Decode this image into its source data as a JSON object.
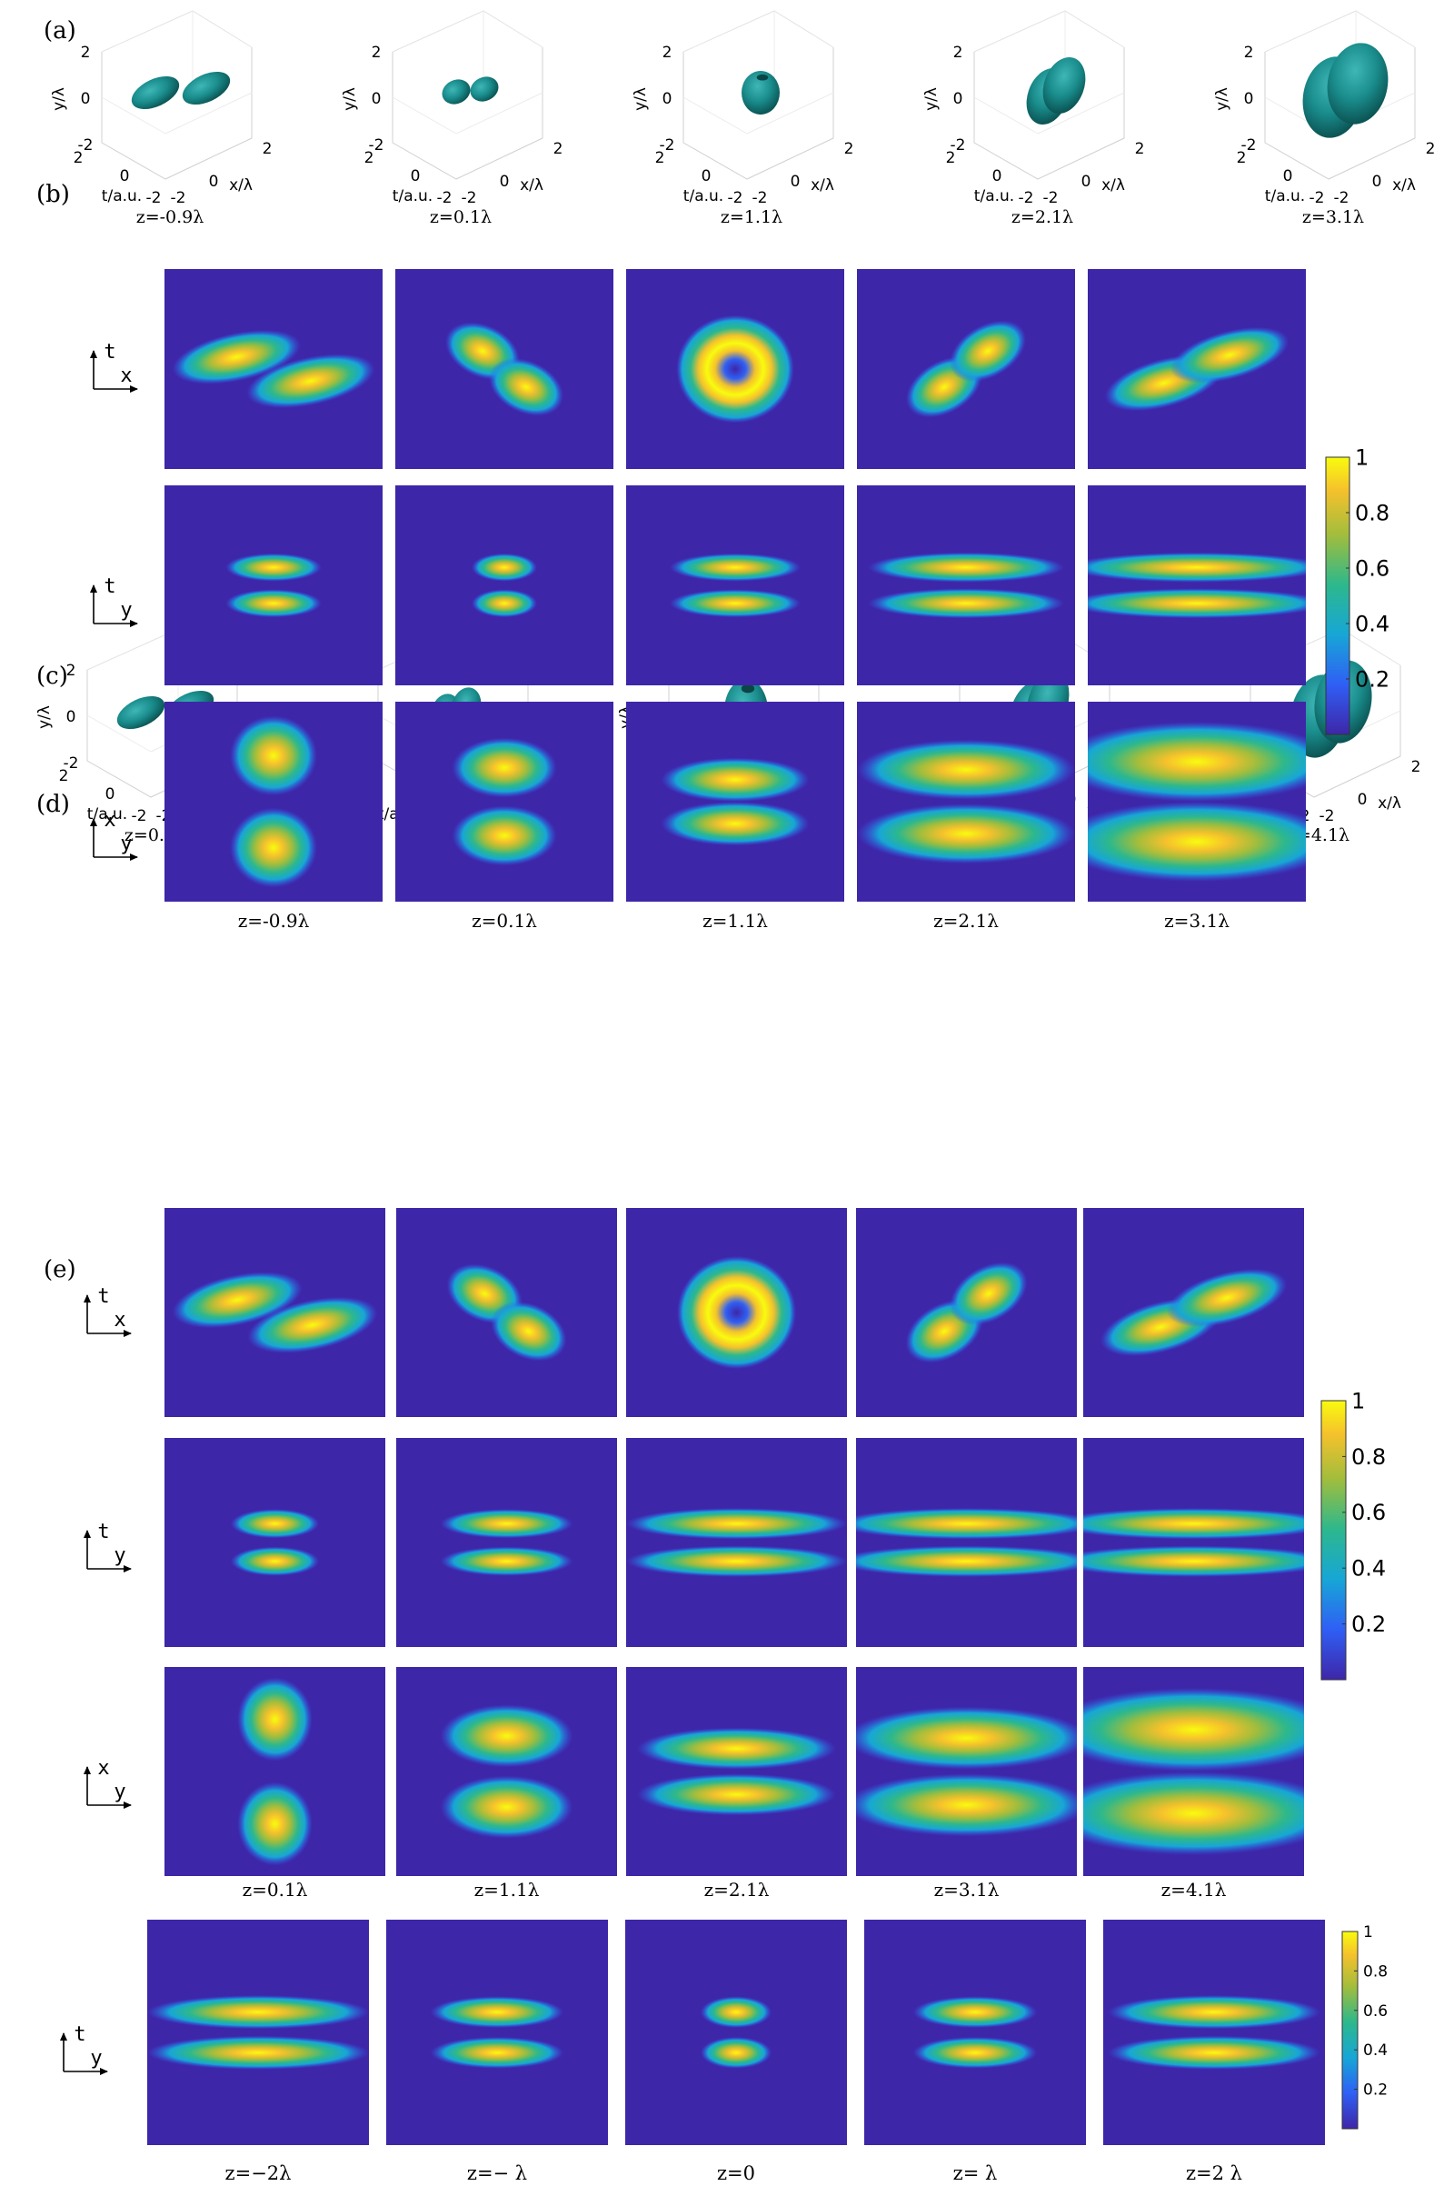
{
  "panel_labels": [
    "(a)",
    "(b)",
    "(c)",
    "(d)",
    "(e)"
  ],
  "panel_a": {
    "captions": [
      "z=-0.9λ",
      "z=0.1λ",
      "z=1.1λ",
      "z=2.1λ",
      "z=3.1λ"
    ],
    "axis_labels": {
      "y": "y/λ",
      "t": "t/a.u.",
      "x": "x/λ"
    },
    "ticks": {
      "top": "2",
      "mid": "0",
      "bottom": "-2"
    },
    "surface_color": "#1a8c8c"
  },
  "panel_b": {
    "row_axes": [
      [
        "t",
        "x"
      ],
      [
        "t",
        "y"
      ],
      [
        "x",
        "y"
      ]
    ],
    "captions": [
      "z=-0.9λ",
      "z=0.1λ",
      "z=1.1λ",
      "z=2.1λ",
      "z=3.1λ"
    ],
    "colorbar_ticks": [
      "1",
      "0.8",
      "0.6",
      "0.4",
      "0.2"
    ]
  },
  "panel_c": {
    "captions": [
      "z=0.1λ",
      "z=1.1λ",
      "z=2.1λ",
      "z=3.1λ",
      "z=4.1λ"
    ],
    "axis_labels": {
      "y": "y/λ",
      "t": "t/a.u.",
      "x": "x/λ"
    },
    "ticks": {
      "top": "2",
      "mid": "0",
      "bottom": "-2"
    }
  },
  "panel_d": {
    "row_axes": [
      [
        "t",
        "x"
      ],
      [
        "t",
        "y"
      ],
      [
        "x",
        "y"
      ]
    ],
    "captions": [
      "z=0.1λ",
      "z=1.1λ",
      "z=2.1λ",
      "z=3.1λ",
      "z=4.1λ"
    ],
    "colorbar_ticks": [
      "1",
      "0.8",
      "0.6",
      "0.4",
      "0.2"
    ]
  },
  "panel_e": {
    "row_axes": [
      [
        "t",
        "y"
      ]
    ],
    "captions": [
      "z=−2λ",
      "z=− λ",
      "z=0",
      "z= λ",
      "z=2 λ"
    ],
    "colorbar_ticks": [
      "1",
      "0.8",
      "0.6",
      "0.4",
      "0.2"
    ]
  },
  "colormap": [
    "#3e26a8",
    "#2f5ff5",
    "#17a6d6",
    "#2db88c",
    "#a2bd3c",
    "#f5c12c",
    "#f9fb0e"
  ],
  "chart_data": [
    {
      "type": "heatmap",
      "panel": "(b)",
      "colorbar_range": [
        0,
        1
      ]
    },
    {
      "type": "heatmap",
      "panel": "(d)",
      "colorbar_range": [
        0,
        1
      ]
    },
    {
      "type": "heatmap",
      "panel": "(e)",
      "colorbar_range": [
        0,
        1
      ]
    }
  ]
}
